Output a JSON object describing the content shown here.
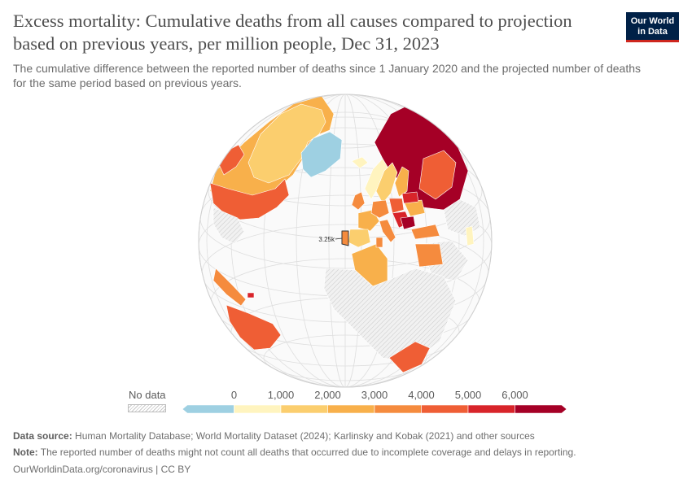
{
  "header": {
    "title": "Excess mortality: Cumulative deaths from all causes compared to projection based on previous years, per million people, Dec 31, 2023",
    "subtitle": "The cumulative difference between the reported number of deaths since 1 January 2020 and the projected number of deaths for the same period based on previous years.",
    "logo_line1": "Our World",
    "logo_line2": "in Data"
  },
  "map": {
    "projection": "orthographic globe",
    "annotation_label": "3.25k",
    "annotation_country": "Portugal"
  },
  "legend": {
    "no_data_label": "No data",
    "bins": [
      {
        "min": -1000,
        "max": 0,
        "color": "#9ed0e2"
      },
      {
        "min": 0,
        "max": 1000,
        "color": "#fff4bf"
      },
      {
        "min": 1000,
        "max": 2000,
        "color": "#fbce6e"
      },
      {
        "min": 2000,
        "max": 3000,
        "color": "#f8b04b"
      },
      {
        "min": 3000,
        "max": 4000,
        "color": "#f58b3e"
      },
      {
        "min": 4000,
        "max": 5000,
        "color": "#ef5e35"
      },
      {
        "min": 5000,
        "max": 6000,
        "color": "#d8242a"
      },
      {
        "min": 6000,
        "max": 7000,
        "color": "#a50026"
      }
    ],
    "ticks": [
      "0",
      "1,000",
      "2,000",
      "3,000",
      "4,000",
      "5,000",
      "6,000"
    ]
  },
  "footer": {
    "source_label": "Data source:",
    "source_text": "Human Mortality Database; World Mortality Dataset (2024); Karlinsky and Kobak (2021) and other sources",
    "note_label": "Note:",
    "note_text": "The reported number of deaths might not count all deaths that occurred due to incomplete coverage and delays in reporting.",
    "url_text": "OurWorldinData.org/coronavirus | CC BY"
  },
  "colors": {
    "no_data_fill": "#ececec",
    "ocean": "#fafafa",
    "grid": "#d6d6d6",
    "border": "#ffffff",
    "title": "#4e4e4e",
    "logo_bg": "#002147",
    "logo_accent": "#ce261e"
  }
}
